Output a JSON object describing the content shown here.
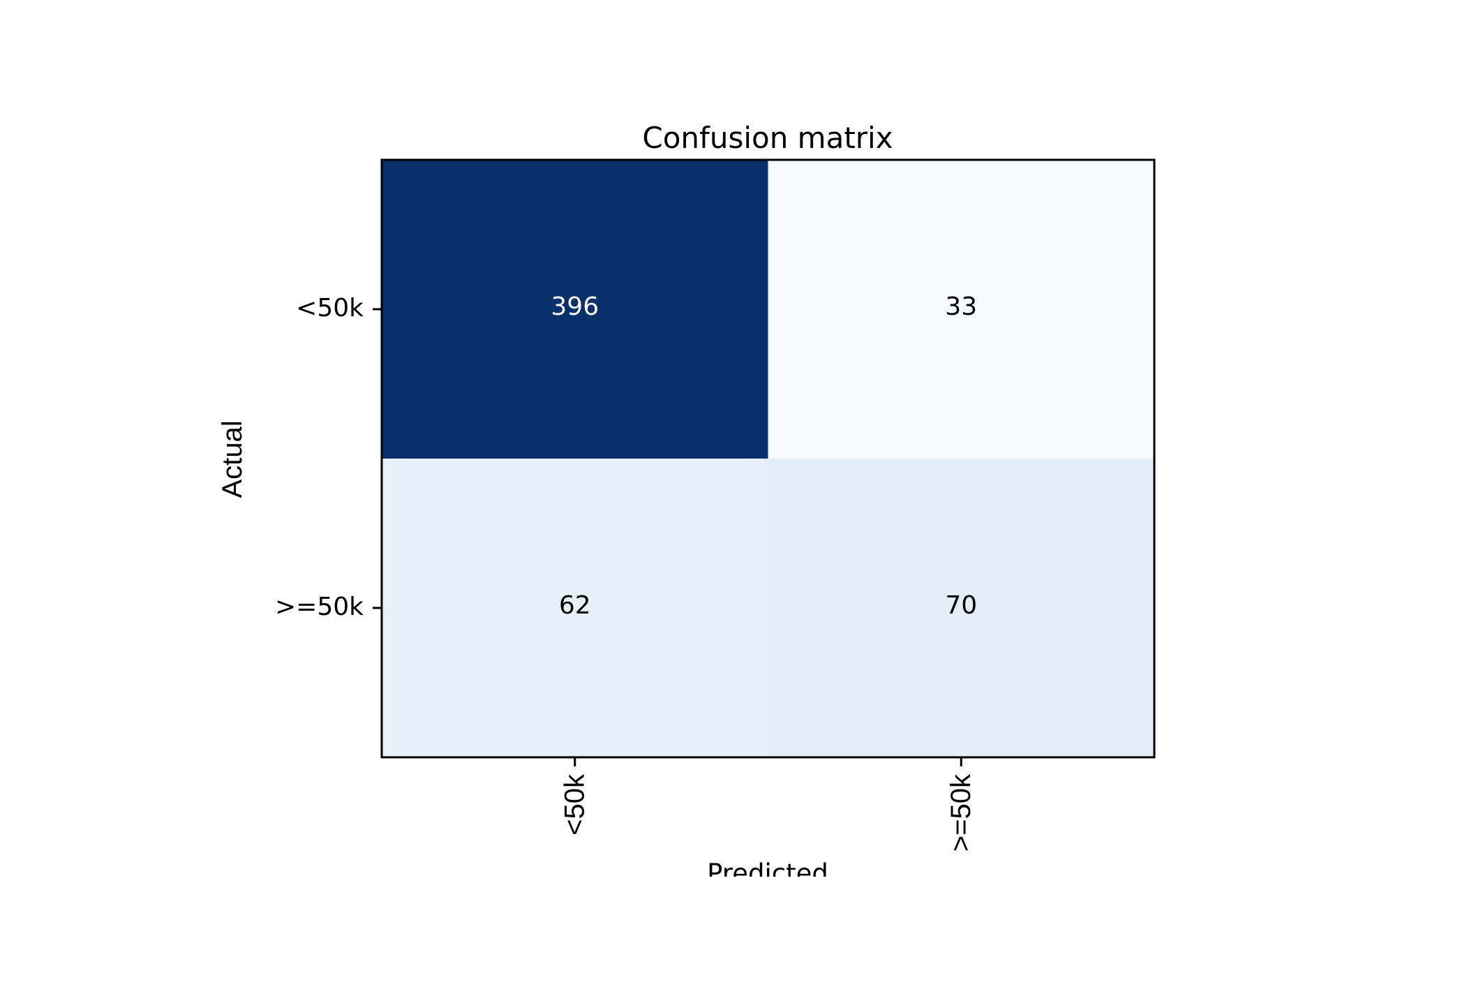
{
  "chart_data": {
    "type": "heatmap",
    "title": "Confusion matrix",
    "xlabel": "Predicted",
    "ylabel": "Actual",
    "x_categories": [
      "<50k",
      ">=50k"
    ],
    "y_categories": [
      "<50k",
      ">=50k"
    ],
    "values": [
      [
        396,
        33
      ],
      [
        62,
        70
      ]
    ],
    "colormap": "Blues",
    "colors": {
      "low": "#f7fbff",
      "high": "#08306b",
      "text_dark": "#000000",
      "text_light": "#ffffff",
      "frame": "#000000"
    }
  }
}
